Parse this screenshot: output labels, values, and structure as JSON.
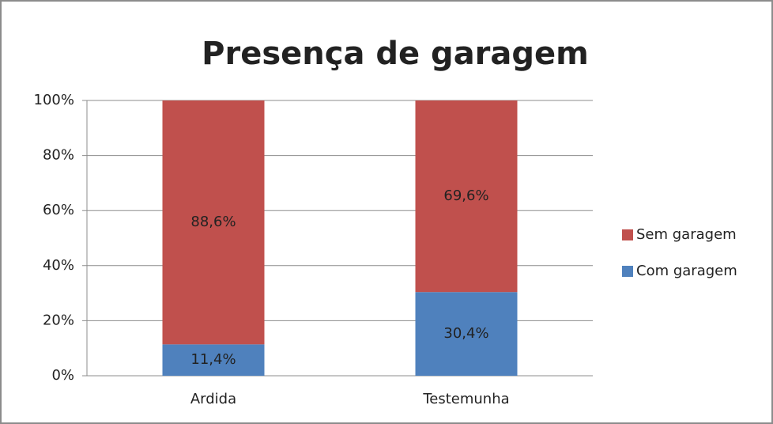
{
  "chart_data": {
    "type": "stacked_bar",
    "title": "Presença de garagem",
    "categories": [
      "Ardida",
      "Testemunha"
    ],
    "series": [
      {
        "name": "Com garagem",
        "color": "#4f81bd",
        "values": [
          11.4,
          30.4
        ],
        "value_labels": [
          "11,4%",
          "30,4%"
        ]
      },
      {
        "name": "Sem garagem",
        "color": "#c0504d",
        "values": [
          88.6,
          69.6
        ],
        "value_labels": [
          "88,6%",
          "69,6%"
        ]
      }
    ],
    "ylim": [
      0,
      100
    ],
    "yticks": [
      {
        "value": 0,
        "label": "0%"
      },
      {
        "value": 20,
        "label": "20%"
      },
      {
        "value": 40,
        "label": "40%"
      },
      {
        "value": 60,
        "label": "60%"
      },
      {
        "value": 80,
        "label": "80%"
      },
      {
        "value": 100,
        "label": "100%"
      }
    ],
    "grid": true,
    "legend": "right"
  }
}
